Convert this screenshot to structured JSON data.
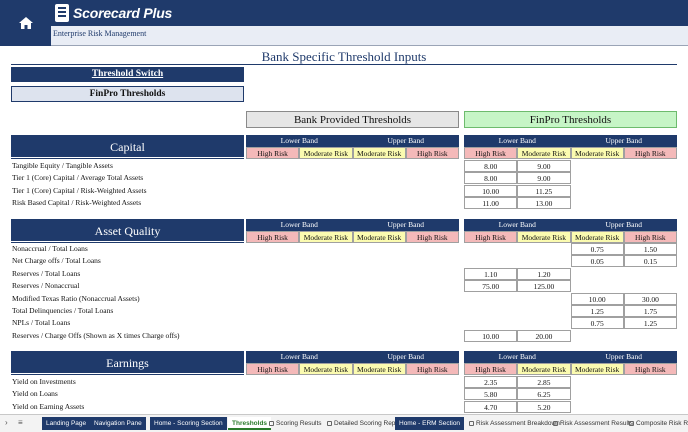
{
  "header": {
    "logo_text": "Scorecard Plus",
    "subtitle": "Enterprise Risk Management"
  },
  "page_title": "Bank Specific Threshold Inputs",
  "buttons": {
    "threshold_switch": "Threshold Switch",
    "finpro_thresholds": "FinPro Thresholds"
  },
  "columns": {
    "bank": "Bank Provided Thresholds",
    "finpro": "FinPro Thresholds"
  },
  "bands": {
    "lower": "Lower Band",
    "upper": "Upper Band"
  },
  "risk_labels": {
    "high": "High Risk",
    "moderate": "Moderate Risk"
  },
  "sections": {
    "capital": {
      "label": "Capital",
      "metrics": [
        "Tangible Equity / Tangible Assets",
        "Tier 1 (Core) Capital / Average Total Assets",
        "Tier 1 (Core) Capital / Risk-Weighted Assets",
        "Risk Based Capital / Risk-Weighted Assets"
      ],
      "finpro_lower_hr": [
        "8.00",
        "8.00",
        "10.00",
        "11.00"
      ],
      "finpro_lower_mr": [
        "9.00",
        "9.00",
        "11.25",
        "13.00"
      ]
    },
    "asset_quality": {
      "label": "Asset Quality",
      "metrics": [
        "Nonaccrual / Total Loans",
        "Net Charge offs / Total Loans",
        "Reserves / Total Loans",
        "Reserves / Nonaccrual",
        "Modified Texas Ratio (Nonaccrual Assets)",
        "Total Delinquencies / Total Loans",
        "NPLs / Total Loans",
        "Reserves / Charge Offs (Shown as X times Charge offs)"
      ],
      "finpro_upper_mr": [
        "0.75",
        "0.05",
        "",
        "",
        "10.00",
        "1.25",
        "0.75",
        ""
      ],
      "finpro_upper_hr": [
        "1.50",
        "0.15",
        "",
        "",
        "30.00",
        "1.75",
        "1.25",
        ""
      ],
      "finpro_lower_hr": [
        "",
        "",
        "1.10",
        "75.00",
        "",
        "",
        "",
        "10.00"
      ],
      "finpro_lower_mr": [
        "",
        "",
        "1.20",
        "125.00",
        "",
        "",
        "",
        "20.00"
      ]
    },
    "earnings": {
      "label": "Earnings",
      "metrics": [
        "Yield on Investments",
        "Yield on Loans",
        "Yield on Earning Assets"
      ],
      "finpro_lower_hr": [
        "2.35",
        "5.80",
        "4.70"
      ],
      "finpro_lower_mr": [
        "2.85",
        "6.25",
        "5.20"
      ]
    }
  },
  "tabs": [
    {
      "label": "Landing Page",
      "style": "dark"
    },
    {
      "label": "Navigation Pane",
      "style": "dark"
    },
    {
      "label": "Home - Scoring Section",
      "style": "dark"
    },
    {
      "label": "Thresholds",
      "style": "active"
    },
    {
      "label": "Scoring Results",
      "style": "plain"
    },
    {
      "label": "Detailed Scoring Report",
      "style": "plain"
    },
    {
      "label": "Home - ERM Section",
      "style": "dark"
    },
    {
      "label": "Risk Assessment Breakdown",
      "style": "plain"
    },
    {
      "label": "Risk Assessment Results",
      "style": "plain"
    },
    {
      "label": "Composite Risk Results",
      "style": "plain"
    }
  ]
}
